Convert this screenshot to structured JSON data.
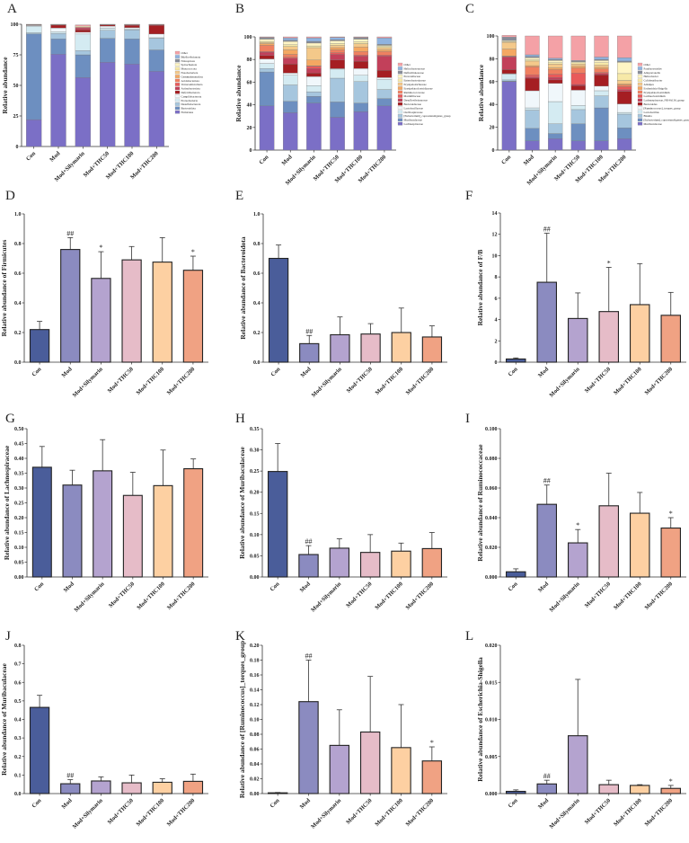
{
  "groups": [
    "Con",
    "Mod",
    "Mod+Silymarin",
    "Mod+THC50",
    "Mod+THC100",
    "Mod+THC200"
  ],
  "group_colors": [
    "#4a5d9a",
    "#8b8bc0",
    "#b4a3cf",
    "#e6bcc8",
    "#fdd0a2",
    "#f0a283"
  ],
  "stack_colors": [
    "#7b6fc6",
    "#6d8fc0",
    "#a6c6de",
    "#d4ebf2",
    "#f0f7fb",
    "#a51e22",
    "#c2405a",
    "#e85a5a",
    "#ef8060",
    "#f4a862",
    "#f4c98a",
    "#f7e9a8",
    "#fff5c4",
    "#888d99",
    "#8fb3e0",
    "#f4a1a6"
  ],
  "chart_data": [
    {
      "panel": "A",
      "type": "bar",
      "stacked": true,
      "ylabel": "Relative abundance",
      "ylim": [
        0,
        100
      ],
      "yticks": [
        0,
        25,
        50,
        75,
        100
      ],
      "legend": "right",
      "legend_entries": [
        "Other",
        "Bdellovibrionota",
        "Nitrospirota",
        "Spirochaetota",
        "Myxococcota",
        "Fusobacteriota",
        "Gemmatimonadota",
        "Acidobacteriota",
        "Verrucomicrobiota",
        "Actinobacteriota",
        "Deferribacterota",
        "Campilobacterota",
        "Proteobacteria",
        "Desulfobacterota",
        "Bacteroidota",
        "Firmicutes"
      ],
      "series_bottom_up": [
        "Firmicutes",
        "Bacteroidota",
        "Desulfobacterota",
        "Proteobacteria",
        "Campilobacterota",
        "Deferribacterota",
        "Actinobacteriota",
        "Verrucomicrobiota",
        "Acidobacteriota",
        "Gemmatimonadota",
        "Fusobacteriota",
        "Myxococcota",
        "Spirochaetota",
        "Nitrospirota",
        "Bdellovibrionota",
        "Other"
      ],
      "values": [
        [
          22,
          70,
          1,
          5.5,
          0.5,
          0.3,
          0.2,
          0.1,
          0,
          0,
          0,
          0,
          0.1,
          0,
          0,
          0.3
        ],
        [
          75.5,
          12.5,
          4.5,
          1.3,
          3.2,
          2.3,
          0.2,
          0.1,
          0,
          0,
          0,
          0,
          0.2,
          0,
          0,
          0.2
        ],
        [
          56.5,
          18.5,
          3.5,
          13.5,
          1.5,
          2,
          1.5,
          0.5,
          0,
          0,
          0,
          0,
          1,
          0,
          0,
          1
        ],
        [
          69,
          19.5,
          6.5,
          2,
          1.5,
          1,
          0.2,
          0.1,
          0,
          0,
          0,
          0,
          0.1,
          0,
          0,
          0.1
        ],
        [
          67.5,
          20.5,
          7.5,
          0.8,
          1,
          1.7,
          0.4,
          0.2,
          0,
          0,
          0,
          0,
          0.2,
          0,
          0,
          0.2
        ],
        [
          61.5,
          17.5,
          9.5,
          0.5,
          3,
          7,
          0.5,
          0.2,
          0,
          0,
          0,
          0,
          0.1,
          0,
          0,
          0.2
        ]
      ]
    },
    {
      "panel": "B",
      "type": "bar",
      "stacked": true,
      "ylabel": "Relative abundance",
      "ylim": [
        0,
        100
      ],
      "yticks": [
        0,
        20,
        40,
        60,
        80,
        100
      ],
      "legend": "right",
      "legend_entries": [
        "Other",
        "Helicobacteraceae",
        "Defluviitaleaceae",
        "Prevotellaceae",
        "Enterobacteriaceae",
        "Erysipelotrichaceae",
        "Erysipelatoclostridiaceae",
        "Ruminococcaceae",
        "Marinifilaceae",
        "Desulfovibrionaceae",
        "Bacteroidaceae",
        "Lactobacillaceae",
        "Oscillospiraceae",
        "[Eubacterium]_coprostanoligenes_group",
        "Muribaculaceae",
        "Lachnospiraceae"
      ],
      "series_bottom_up": [
        "Lachnospiraceae",
        "Muribaculaceae",
        "[Eubacterium]_coprostanoligenes_group",
        "Oscillospiraceae",
        "Lactobacillaceae",
        "Bacteroidaceae",
        "Desulfovibrionaceae",
        "Marinifilaceae",
        "Ruminococcaceae",
        "Erysipelatoclostridiaceae",
        "Erysipelotrichaceae",
        "Enterobacteriaceae",
        "Prevotellaceae",
        "Defluviitaleaceae",
        "Helicobacteraceae",
        "Other"
      ],
      "values": [
        [
          39,
          30,
          3,
          4.5,
          4,
          3,
          3,
          0.5,
          5.5,
          1.5,
          1,
          1,
          2,
          1,
          0.5,
          0.5
        ],
        [
          33,
          10,
          14.5,
          8.5,
          2,
          8,
          5,
          1,
          2.5,
          4,
          3,
          1.5,
          3,
          1,
          2,
          1
        ],
        [
          41.5,
          6,
          4,
          5.5,
          8,
          3,
          4,
          2,
          0.5,
          5,
          11,
          1.5,
          2.5,
          1.5,
          3,
          1
        ],
        [
          29,
          13.5,
          21,
          8,
          0.5,
          7.5,
          5,
          1.5,
          2.5,
          2,
          2,
          1.5,
          2.5,
          1,
          2,
          0.5
        ],
        [
          34,
          7.5,
          19,
          5.5,
          6,
          6.5,
          4.5,
          1,
          3,
          4,
          3,
          1.5,
          2.5,
          1,
          0.5,
          0.5
        ],
        [
          39,
          6.5,
          8,
          9,
          1.5,
          6.5,
          12.5,
          1,
          3,
          1.5,
          2,
          1,
          1,
          1,
          5.5,
          1
        ]
      ]
    },
    {
      "panel": "C",
      "type": "bar",
      "stacked": true,
      "ylabel": "Relative abundance",
      "ylim": [
        0,
        100
      ],
      "yticks": [
        0,
        20,
        40,
        60,
        80,
        100
      ],
      "legend": "right",
      "legend_entries": [
        "Other",
        "Parabacteroides",
        "Alloprevotella",
        "Helicobacter",
        "Colidextribacter",
        "Alistipes",
        "Escherichia-Shigella",
        "Erysipelatoclostridium",
        "Lachnoclostridium",
        "Lachnospiraceae_NK4A136_group",
        "Bacteroides",
        "[Ruminococcus]_torques_group",
        "Lactobacillus",
        "Blautia",
        "[Eubacterium]_coprostanoligenes_group",
        "Muribaculaceae"
      ],
      "series_bottom_up": [
        "Muribaculaceae",
        "[Eubacterium]_coprostanoligenes_group",
        "Blautia",
        "Lactobacillus",
        "[Ruminococcus]_torques_group",
        "Bacteroides",
        "Lachnospiraceae_NK4A136_group",
        "Lachnoclostridium",
        "Erysipelatoclostridium",
        "Escherichia-Shigella",
        "Alistipes",
        "Colidextribacter",
        "Helicobacter",
        "Alloprevotella",
        "Parabacteroides",
        "Other"
      ],
      "values": [
        [
          60,
          0.5,
          1,
          5,
          0.5,
          3.5,
          11,
          0.5,
          0.5,
          6,
          6,
          0.5,
          1,
          2.5,
          0.5,
          1.5
        ],
        [
          8,
          11,
          16,
          2,
          15,
          11,
          1,
          2,
          7,
          1,
          4,
          1,
          2,
          1,
          1.5,
          16.5
        ],
        [
          10,
          4.5,
          8.5,
          19.5,
          16,
          3,
          2,
          3,
          4,
          1.5,
          3.5,
          1,
          2,
          1,
          1,
          19.5
        ],
        [
          8,
          15,
          12.5,
          3.5,
          13.5,
          4,
          1,
          10,
          4.5,
          1.5,
          2,
          1,
          1,
          0.5,
          0.5,
          21.5
        ],
        [
          8,
          29,
          10.5,
          4.5,
          4,
          10,
          1,
          1,
          3,
          1.5,
          2,
          2,
          2,
          1,
          2,
          18.5
        ],
        [
          10,
          9.5,
          12,
          1.5,
          7.5,
          11,
          1.5,
          2.5,
          1.5,
          1,
          3,
          6,
          10,
          1,
          3,
          19
        ]
      ]
    },
    {
      "panel": "D",
      "type": "bar",
      "ylabel": "Relative abundance of Firmicutes",
      "ylim": [
        0,
        1.0
      ],
      "yticks": [
        "0.0",
        "0.2",
        "0.4",
        "0.6",
        "0.8",
        "1.0"
      ],
      "values": [
        0.22,
        0.76,
        0.565,
        0.69,
        0.675,
        0.62
      ],
      "error_upper": [
        0.275,
        0.84,
        0.745,
        0.78,
        0.84,
        0.715
      ],
      "significance": [
        "",
        "##",
        "*",
        "",
        "",
        "*"
      ]
    },
    {
      "panel": "E",
      "type": "bar",
      "ylabel": "Relative abundance of Bacteroidota",
      "ylim": [
        0,
        1.0
      ],
      "yticks": [
        "0.0",
        "0.2",
        "0.4",
        "0.6",
        "0.8",
        "1.0"
      ],
      "values": [
        0.7,
        0.125,
        0.185,
        0.19,
        0.2,
        0.17
      ],
      "error_upper": [
        0.79,
        0.18,
        0.305,
        0.26,
        0.365,
        0.245
      ],
      "significance": [
        "",
        "##",
        "",
        "",
        "",
        ""
      ]
    },
    {
      "panel": "F",
      "type": "bar",
      "ylabel": "Relative abundance of F/B",
      "ylim": [
        0,
        14
      ],
      "yticks": [
        "0",
        "2",
        "4",
        "6",
        "8",
        "10",
        "12",
        "14"
      ],
      "values": [
        0.3,
        7.5,
        4.1,
        4.75,
        5.4,
        4.4
      ],
      "error_upper": [
        0.4,
        12.1,
        6.5,
        8.9,
        9.25,
        6.55
      ],
      "significance": [
        "",
        "##",
        "",
        "*",
        "",
        ""
      ]
    },
    {
      "panel": "G",
      "type": "bar",
      "ylabel": "Relative abundance of Lachnospiraceae",
      "ylim": [
        0,
        0.5
      ],
      "yticks": [
        "0.00",
        "0.05",
        "0.10",
        "0.15",
        "0.20",
        "0.25",
        "0.30",
        "0.35",
        "0.40",
        "0.45",
        "0.50"
      ],
      "values": [
        0.37,
        0.31,
        0.358,
        0.275,
        0.308,
        0.365
      ],
      "error_upper": [
        0.44,
        0.36,
        0.463,
        0.353,
        0.428,
        0.398
      ],
      "significance": [
        "",
        "",
        "",
        "",
        "",
        ""
      ]
    },
    {
      "panel": "H",
      "type": "bar",
      "ylabel": "Relative abundance of Muribaculaceae",
      "ylim": [
        0,
        0.35
      ],
      "yticks": [
        "0.00",
        "0.05",
        "0.10",
        "0.15",
        "0.20",
        "0.25",
        "0.30",
        "0.35"
      ],
      "values": [
        0.249,
        0.053,
        0.068,
        0.058,
        0.061,
        0.067
      ],
      "error_upper": [
        0.315,
        0.074,
        0.09,
        0.1,
        0.08,
        0.105
      ],
      "significance": [
        "",
        "##",
        "",
        "",
        "",
        ""
      ]
    },
    {
      "panel": "I",
      "type": "bar",
      "ylabel": "Relative abundance of Ruminococcaceae",
      "ylim": [
        0,
        0.1
      ],
      "yticks": [
        "0.000",
        "0.020",
        "0.040",
        "0.060",
        "0.080",
        "0.100"
      ],
      "values": [
        0.0035,
        0.049,
        0.023,
        0.048,
        0.043,
        0.033
      ],
      "error_upper": [
        0.0055,
        0.062,
        0.032,
        0.07,
        0.057,
        0.04
      ],
      "significance": [
        "",
        "##",
        "*",
        "",
        "",
        "*"
      ]
    },
    {
      "panel": "J",
      "type": "bar",
      "ylabel": "Relative abundance of Muribaculaceae",
      "ylim": [
        0,
        0.8
      ],
      "yticks": [
        "0.0",
        "0.1",
        "0.2",
        "0.3",
        "0.4",
        "0.5",
        "0.6",
        "0.7",
        "0.8"
      ],
      "values": [
        0.465,
        0.053,
        0.068,
        0.058,
        0.061,
        0.066
      ],
      "error_upper": [
        0.53,
        0.075,
        0.09,
        0.1,
        0.08,
        0.105
      ],
      "significance": [
        "",
        "##",
        "",
        "",
        "",
        ""
      ]
    },
    {
      "panel": "K",
      "type": "bar",
      "ylabel": "Relative abundance of [Ruminococcus]_torques_group",
      "ylim": [
        0,
        0.2
      ],
      "yticks": [
        "0.00",
        "0.02",
        "0.04",
        "0.06",
        "0.08",
        "0.10",
        "0.12",
        "0.14",
        "0.16",
        "0.18",
        "0.20"
      ],
      "values": [
        0.001,
        0.124,
        0.065,
        0.083,
        0.062,
        0.044
      ],
      "error_upper": [
        0.0015,
        0.18,
        0.113,
        0.158,
        0.12,
        0.063
      ],
      "significance": [
        "",
        "##",
        "",
        "",
        "",
        "*"
      ]
    },
    {
      "panel": "L",
      "type": "bar",
      "ylabel": "Relative abundance of Escherichia-Shigella",
      "ylim": [
        0,
        0.02
      ],
      "yticks": [
        "0.000",
        "0.005",
        "0.010",
        "0.015",
        "0.020"
      ],
      "values": [
        0.0003,
        0.0013,
        0.0078,
        0.0012,
        0.0011,
        0.0007
      ],
      "error_upper": [
        0.0005,
        0.0018,
        0.0154,
        0.0018,
        0.0012,
        0.0011
      ],
      "significance": [
        "",
        "##",
        "",
        "",
        "",
        "*"
      ]
    }
  ]
}
